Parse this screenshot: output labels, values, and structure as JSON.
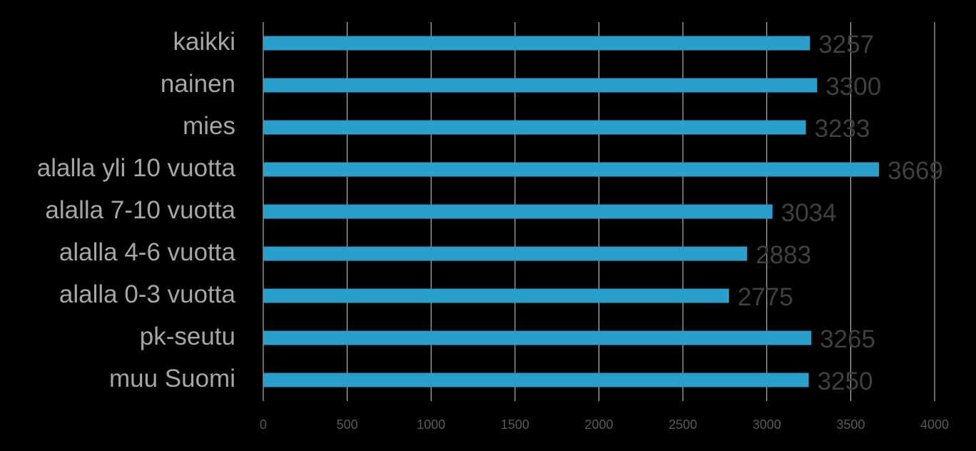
{
  "chart_data": {
    "type": "bar",
    "orientation": "horizontal",
    "categories": [
      "kaikki",
      "nainen",
      "mies",
      "alalla yli 10 vuotta",
      "alalla 7-10 vuotta",
      "alalla 4-6 vuotta",
      "alalla 0-3 vuotta",
      "pk-seutu",
      "muu Suomi"
    ],
    "values": [
      3257,
      3300,
      3233,
      3669,
      3034,
      2883,
      2775,
      3265,
      3250
    ],
    "color": "#2a9fcd",
    "xlim": [
      0,
      4000
    ],
    "xticks": [
      0,
      500,
      1000,
      1500,
      2000,
      2500,
      3000,
      3500,
      4000
    ],
    "grid": true
  }
}
